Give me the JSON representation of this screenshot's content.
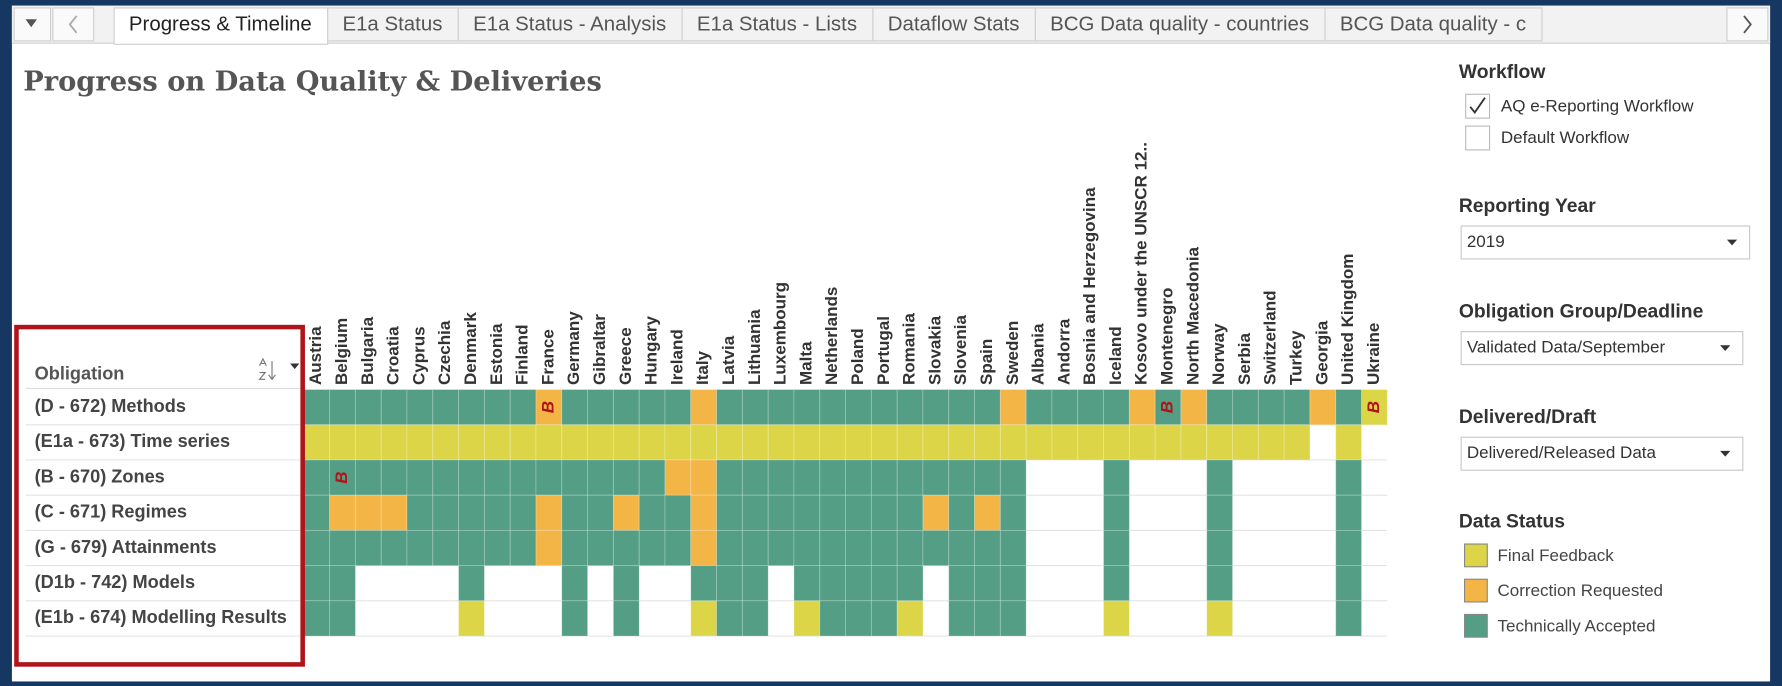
{
  "tabs": [
    {
      "label": "Progress & Timeline",
      "active": true
    },
    {
      "label": "E1a Status",
      "active": false
    },
    {
      "label": "E1a Status - Analysis",
      "active": false
    },
    {
      "label": "E1a Status - Lists",
      "active": false
    },
    {
      "label": "Dataflow Stats",
      "active": false
    },
    {
      "label": "BCG Data quality - countries",
      "active": false
    },
    {
      "label": "BCG Data quality - c",
      "active": false
    }
  ],
  "title": "Progress on Data Quality & Deliveries",
  "grid": {
    "header": "Obligation",
    "countries": [
      "Austria",
      "Belgium",
      "Bulgaria",
      "Croatia",
      "Cyprus",
      "Czechia",
      "Denmark",
      "Estonia",
      "Finland",
      "France",
      "Germany",
      "Gibraltar",
      "Greece",
      "Hungary",
      "Ireland",
      "Italy",
      "Latvia",
      "Lithuania",
      "Luxembourg",
      "Malta",
      "Netherlands",
      "Poland",
      "Portugal",
      "Romania",
      "Slovakia",
      "Slovenia",
      "Spain",
      "Sweden",
      "Albania",
      "Andorra",
      "Bosnia and Herzegovina",
      "Iceland",
      "Kosovo under the UNSCR 12..",
      "Montenegro",
      "North Macedonia",
      "Norway",
      "Serbia",
      "Switzerland",
      "Turkey",
      "Georgia",
      "United Kingdom",
      "Ukraine"
    ],
    "obligations": [
      {
        "label": "(D - 672) Methods",
        "cells": [
          "G",
          "G",
          "G",
          "G",
          "G",
          "G",
          "G",
          "G",
          "G",
          {
            "status": "O",
            "label": "B"
          },
          "G",
          "G",
          "G",
          "G",
          "G",
          "O",
          "G",
          "G",
          "G",
          "G",
          "G",
          "G",
          "G",
          "G",
          "G",
          "G",
          "G",
          "O",
          "G",
          "G",
          "G",
          "G",
          "O",
          {
            "status": "G",
            "label": "B"
          },
          "O",
          "G",
          "G",
          "G",
          "G",
          "O",
          "G",
          {
            "status": "Y",
            "label": "B"
          }
        ]
      },
      {
        "label": "(E1a - 673) Time series",
        "cells": [
          "Y",
          "Y",
          "Y",
          "Y",
          "Y",
          "Y",
          "Y",
          "Y",
          "Y",
          "Y",
          "Y",
          "Y",
          "Y",
          "Y",
          "Y",
          "Y",
          "Y",
          "Y",
          "Y",
          "Y",
          "Y",
          "Y",
          "Y",
          "Y",
          "Y",
          "Y",
          "Y",
          "Y",
          "Y",
          "Y",
          "Y",
          "Y",
          "Y",
          "Y",
          "Y",
          "Y",
          "Y",
          "Y",
          "Y",
          null,
          "Y",
          null
        ]
      },
      {
        "label": "(B - 670) Zones",
        "cells": [
          "G",
          {
            "status": "G",
            "label": "B"
          },
          "G",
          "G",
          "G",
          "G",
          "G",
          "G",
          "G",
          "G",
          "G",
          "G",
          "G",
          "G",
          "O",
          "O",
          "G",
          "G",
          "G",
          "G",
          "G",
          "G",
          "G",
          "G",
          "G",
          "G",
          "G",
          "G",
          null,
          null,
          null,
          "G",
          null,
          null,
          null,
          "G",
          null,
          null,
          null,
          null,
          "G",
          null
        ]
      },
      {
        "label": "(C - 671) Regimes",
        "cells": [
          "G",
          "O",
          "O",
          "O",
          "G",
          "G",
          "G",
          "G",
          "G",
          "O",
          "G",
          "G",
          "O",
          "G",
          "G",
          "O",
          "G",
          "G",
          "G",
          "G",
          "G",
          "G",
          "G",
          "G",
          "O",
          "G",
          "O",
          "G",
          null,
          null,
          null,
          "G",
          null,
          null,
          null,
          "G",
          null,
          null,
          null,
          null,
          "G",
          null
        ]
      },
      {
        "label": "(G - 679) Attainments",
        "cells": [
          "G",
          "G",
          "G",
          "G",
          "G",
          "G",
          "G",
          "G",
          "G",
          "O",
          "G",
          "G",
          "G",
          "G",
          "G",
          "O",
          "G",
          "G",
          "G",
          "G",
          "G",
          "G",
          "G",
          "G",
          "G",
          "G",
          "G",
          "G",
          null,
          null,
          null,
          "G",
          null,
          null,
          null,
          "G",
          null,
          null,
          null,
          null,
          "G",
          null
        ]
      },
      {
        "label": "(D1b - 742) Models",
        "cells": [
          "G",
          "G",
          null,
          null,
          null,
          null,
          "G",
          null,
          null,
          null,
          "G",
          null,
          "G",
          null,
          null,
          "G",
          "G",
          "G",
          null,
          "G",
          "G",
          "G",
          "G",
          "G",
          null,
          "G",
          "G",
          "G",
          null,
          null,
          null,
          "G",
          null,
          null,
          null,
          "G",
          null,
          null,
          null,
          null,
          "G",
          null
        ]
      },
      {
        "label": "(E1b - 674) Modelling Results",
        "cells": [
          "G",
          "G",
          null,
          null,
          null,
          null,
          "Y",
          null,
          null,
          null,
          "G",
          null,
          "G",
          null,
          null,
          "Y",
          "G",
          "G",
          null,
          "Y",
          "G",
          "G",
          "G",
          "Y",
          null,
          "G",
          "G",
          "G",
          null,
          null,
          null,
          "Y",
          null,
          null,
          null,
          "Y",
          null,
          null,
          null,
          null,
          "G",
          null
        ]
      }
    ]
  },
  "filters": {
    "workflow": {
      "title": "Workflow",
      "options": [
        {
          "label": "AQ e-Reporting Workflow",
          "checked": true
        },
        {
          "label": "Default Workflow",
          "checked": false
        }
      ]
    },
    "dropdowns": [
      {
        "title": "Reporting Year",
        "value": "2019"
      },
      {
        "title": "Obligation Group/Deadline",
        "value": "Validated Data/September"
      },
      {
        "title": "Delivered/Draft",
        "value": "Delivered/Released Data"
      }
    ]
  },
  "legend": {
    "title": "Data Status",
    "items": [
      {
        "code": "Y",
        "label": "Final Feedback",
        "color": "#dcd548"
      },
      {
        "code": "O",
        "label": "Correction Requested",
        "color": "#f4b547"
      },
      {
        "code": "G",
        "label": "Technically Accepted",
        "color": "#539e84"
      }
    ]
  }
}
